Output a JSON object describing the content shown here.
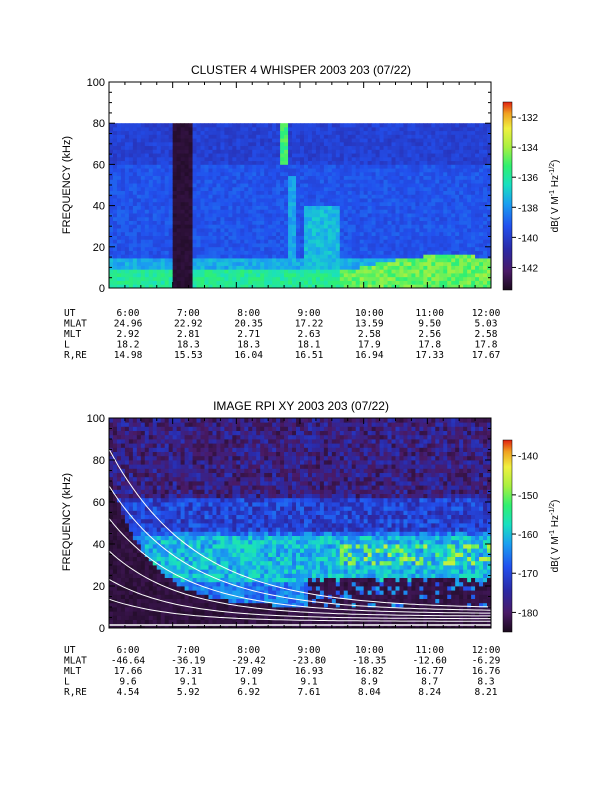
{
  "chart_data": [
    {
      "type": "heatmap",
      "title": "CLUSTER 4 WHISPER 2003 203 (07/22)",
      "ylabel": "FREQUENCY (kHz)",
      "ylim": [
        0,
        100
      ],
      "yticks": [
        "0",
        "20",
        "40",
        "60",
        "80",
        "100"
      ],
      "xlim": [
        "6:00",
        "12:00"
      ],
      "data_max_frequency_khz": 80,
      "colorbar": {
        "label": "dB( V M",
        "exp1": "-1",
        "mid": " Hz",
        "exp2": "-1/2",
        "end": ")",
        "range": [
          -143.5,
          -131
        ],
        "ticks": [
          "-132",
          "-134",
          "-136",
          "-138",
          "-140",
          "-142"
        ],
        "tick_values": [
          -132,
          -134,
          -136,
          -138,
          -140,
          -142
        ]
      },
      "ephemeris": {
        "labels": [
          "UT",
          "MLAT",
          "MLT",
          "L",
          "R,RE"
        ],
        "columns": [
          [
            "6:00",
            "24.96",
            "2.92",
            "18.2",
            "14.98"
          ],
          [
            "7:00",
            "22.92",
            "2.81",
            "18.3",
            "15.53"
          ],
          [
            "8:00",
            "20.35",
            "2.71",
            "18.3",
            "16.04"
          ],
          [
            "9:00",
            "17.22",
            "2.63",
            "18.1",
            "16.51"
          ],
          [
            "10:00",
            "13.59",
            "2.58",
            "17.9",
            "16.94"
          ],
          [
            "11:00",
            "9.50",
            "2.56",
            "17.8",
            "17.33"
          ],
          [
            "12:00",
            "5.03",
            "2.58",
            "17.8",
            "17.67"
          ]
        ]
      }
    },
    {
      "type": "heatmap",
      "title": "IMAGE RPI XY 2003 203 (07/22)",
      "ylabel": "FREQUENCY (kHz)",
      "ylim": [
        0,
        100
      ],
      "yticks": [
        "0",
        "20",
        "40",
        "60",
        "80",
        "100"
      ],
      "xlim": [
        "6:00",
        "12:00"
      ],
      "colorbar": {
        "label": "dB( V M",
        "exp1": "-1",
        "mid": " Hz",
        "exp2": "-1/2",
        "end": ")",
        "range": [
          -185,
          -136
        ],
        "ticks": [
          "-140",
          "-150",
          "-160",
          "-170",
          "-180"
        ],
        "tick_values": [
          -140,
          -150,
          -160,
          -170,
          -180
        ]
      },
      "ephemeris": {
        "labels": [
          "UT",
          "MLAT",
          "MLT",
          "L",
          "R,RE"
        ],
        "columns": [
          [
            "6:00",
            "-46.64",
            "17.66",
            "9.6",
            "4.54"
          ],
          [
            "7:00",
            "-36.19",
            "17.31",
            "9.1",
            "5.92"
          ],
          [
            "8:00",
            "-29.42",
            "17.09",
            "9.1",
            "6.92"
          ],
          [
            "9:00",
            "-23.80",
            "16.93",
            "9.1",
            "7.61"
          ],
          [
            "10:00",
            "-18.35",
            "16.82",
            "8.9",
            "8.04"
          ],
          [
            "11:00",
            "-12.60",
            "16.77",
            "8.7",
            "8.24"
          ],
          [
            "12:00",
            "-6.29",
            "16.76",
            "8.3",
            "8.21"
          ]
        ]
      }
    }
  ],
  "colors": {
    "background": "#ffffff",
    "colormap": [
      "#1a0a1c",
      "#4a1a66",
      "#2a2aa8",
      "#2250ee",
      "#1aa0f0",
      "#19e0c0",
      "#30f070",
      "#a8f040",
      "#f0f040",
      "#f0a020",
      "#e02010"
    ]
  }
}
